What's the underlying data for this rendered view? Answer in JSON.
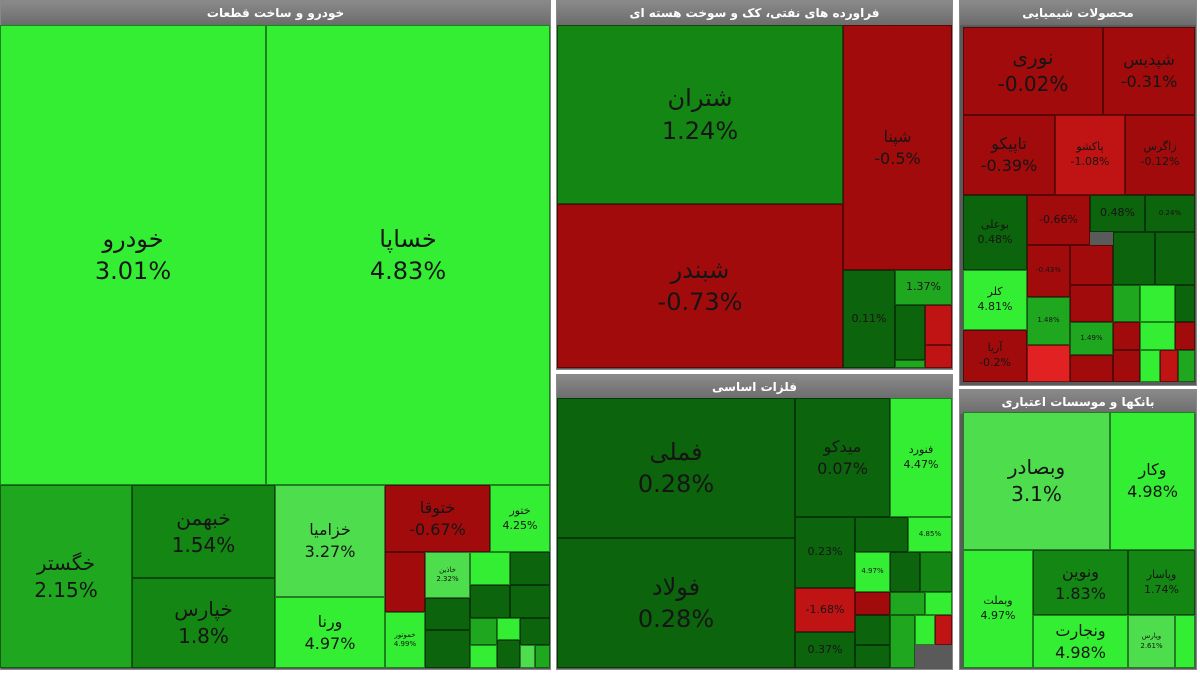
{
  "colors": {
    "g5": "#33ee33",
    "g3": "#4ddd4d",
    "g2": "#1fa81f",
    "g1": "#138613",
    "g0": "#0c640c",
    "r0": "#a20b0b",
    "r1": "#c01414",
    "r2": "#e22222"
  },
  "panels": [
    {
      "title": "خودرو و ساخت قطعات",
      "tiles": [
        {
          "name": "خودرو",
          "change": "3.01%",
          "tone": "g5"
        },
        {
          "name": "خساپا",
          "change": "4.83%",
          "tone": "g5"
        },
        {
          "name": "خگستر",
          "change": "2.15%",
          "tone": "g2"
        },
        {
          "name": "خبهمن",
          "change": "1.54%",
          "tone": "g1"
        },
        {
          "name": "خپارس",
          "change": "1.8%",
          "tone": "g1"
        },
        {
          "name": "خزامیا",
          "change": "3.27%",
          "tone": "g3"
        },
        {
          "name": "ورنا",
          "change": "4.97%",
          "tone": "g5"
        },
        {
          "name": "ختوقا",
          "change": "-0.67%",
          "tone": "r0"
        },
        {
          "name": "ختور",
          "change": "4.25%",
          "tone": "g5"
        },
        {
          "name": "",
          "change": "",
          "tone": "r0"
        },
        {
          "name": "خموتور",
          "change": "4.99%",
          "tone": "g5"
        },
        {
          "name": "خاذین",
          "change": "2.32%",
          "tone": "g3"
        },
        {
          "name": "",
          "change": "",
          "tone": "g5"
        },
        {
          "name": "",
          "change": "",
          "tone": "g0"
        },
        {
          "name": "",
          "change": "",
          "tone": "g0"
        },
        {
          "name": "",
          "change": "",
          "tone": "g0"
        },
        {
          "name": "",
          "change": "",
          "tone": "g0"
        },
        {
          "name": "",
          "change": "",
          "tone": "g0"
        },
        {
          "name": "",
          "change": "",
          "tone": "g2"
        },
        {
          "name": "",
          "change": "",
          "tone": "g5"
        },
        {
          "name": "",
          "change": "",
          "tone": "g0"
        },
        {
          "name": "",
          "change": "",
          "tone": "g5"
        },
        {
          "name": "",
          "change": "",
          "tone": "g0"
        },
        {
          "name": "",
          "change": "",
          "tone": "g3"
        },
        {
          "name": "",
          "change": "",
          "tone": "g2"
        }
      ]
    },
    {
      "title": "فراورده های نفتی، کک و سوخت هسته ای",
      "tiles": [
        {
          "name": "شتران",
          "change": "1.24%",
          "tone": "g1"
        },
        {
          "name": "شپنا",
          "change": "-0.5%",
          "tone": "r0"
        },
        {
          "name": "شبندر",
          "change": "-0.73%",
          "tone": "r0"
        },
        {
          "name": "",
          "change": "0.11%",
          "tone": "g0"
        },
        {
          "name": "",
          "change": "1.37%",
          "tone": "g2"
        },
        {
          "name": "",
          "change": "",
          "tone": "g0"
        },
        {
          "name": "",
          "change": "",
          "tone": "r1"
        },
        {
          "name": "",
          "change": "",
          "tone": "g2"
        },
        {
          "name": "",
          "change": "",
          "tone": "r1"
        }
      ]
    },
    {
      "title": "فلزات اساسی",
      "tiles": [
        {
          "name": "فملی",
          "change": "0.28%",
          "tone": "g0"
        },
        {
          "name": "فولاد",
          "change": "0.28%",
          "tone": "g0"
        },
        {
          "name": "میدکو",
          "change": "0.07%",
          "tone": "g0"
        },
        {
          "name": "فنورد",
          "change": "4.47%",
          "tone": "g5"
        },
        {
          "name": "",
          "change": "0.23%",
          "tone": "g0"
        },
        {
          "name": "",
          "change": "",
          "tone": "g0"
        },
        {
          "name": "",
          "change": "4.85%",
          "tone": "g5"
        },
        {
          "name": "",
          "change": "4.97%",
          "tone": "g5"
        },
        {
          "name": "",
          "change": "",
          "tone": "g0"
        },
        {
          "name": "",
          "change": "",
          "tone": "g1"
        },
        {
          "name": "",
          "change": "-1.68%",
          "tone": "r1"
        },
        {
          "name": "",
          "change": "",
          "tone": "r0"
        },
        {
          "name": "",
          "change": "",
          "tone": "g2"
        },
        {
          "name": "",
          "change": "",
          "tone": "g5"
        },
        {
          "name": "",
          "change": "0.37%",
          "tone": "g0"
        },
        {
          "name": "",
          "change": "",
          "tone": "g0"
        },
        {
          "name": "",
          "change": "",
          "tone": "g0"
        },
        {
          "name": "",
          "change": "",
          "tone": "g2"
        },
        {
          "name": "",
          "change": "",
          "tone": "g5"
        },
        {
          "name": "",
          "change": "",
          "tone": "r1"
        }
      ]
    },
    {
      "title": "محصولات شیمیایی",
      "tiles": [
        {
          "name": "نوری",
          "change": "-0.02%",
          "tone": "r0"
        },
        {
          "name": "شپدیس",
          "change": "-0.31%",
          "tone": "r0"
        },
        {
          "name": "تاپیکو",
          "change": "-0.39%",
          "tone": "r0"
        },
        {
          "name": "پاکشو",
          "change": "-1.08%",
          "tone": "r1"
        },
        {
          "name": "زاگرس",
          "change": "-0.12%",
          "tone": "r0"
        },
        {
          "name": "بوعلی",
          "change": "0.48%",
          "tone": "g0"
        },
        {
          "name": "کلر",
          "change": "4.81%",
          "tone": "g5"
        },
        {
          "name": "آریا",
          "change": "-0.2%",
          "tone": "r0"
        },
        {
          "name": "",
          "change": "-0.66%",
          "tone": "r0"
        },
        {
          "name": "",
          "change": "0.48%",
          "tone": "g0"
        },
        {
          "name": "",
          "change": "0.24%",
          "tone": "g0"
        },
        {
          "name": "",
          "change": "-0.43%",
          "tone": "r0"
        },
        {
          "name": "",
          "change": "",
          "tone": "r0"
        },
        {
          "name": "",
          "change": "",
          "tone": "g0"
        },
        {
          "name": "",
          "change": "",
          "tone": "g0"
        },
        {
          "name": "",
          "change": "1.48%",
          "tone": "g2"
        },
        {
          "name": "",
          "change": "",
          "tone": "r0"
        },
        {
          "name": "",
          "change": "",
          "tone": "g2"
        },
        {
          "name": "",
          "change": "",
          "tone": "g5"
        },
        {
          "name": "",
          "change": "",
          "tone": "g0"
        },
        {
          "name": "",
          "change": "1.49%",
          "tone": "g2"
        },
        {
          "name": "",
          "change": "",
          "tone": "r0"
        },
        {
          "name": "",
          "change": "",
          "tone": "g5"
        },
        {
          "name": "",
          "change": "",
          "tone": "r0"
        },
        {
          "name": "",
          "change": "",
          "tone": "r2"
        },
        {
          "name": "",
          "change": "",
          "tone": "r0"
        },
        {
          "name": "",
          "change": "",
          "tone": "r0"
        },
        {
          "name": "",
          "change": "",
          "tone": "g5"
        },
        {
          "name": "",
          "change": "",
          "tone": "r1"
        },
        {
          "name": "",
          "change": "",
          "tone": "g2"
        }
      ]
    },
    {
      "title": "بانکها و موسسات اعتباری",
      "tiles": [
        {
          "name": "وبصادر",
          "change": "3.1%",
          "tone": "g3"
        },
        {
          "name": "وکار",
          "change": "4.98%",
          "tone": "g5"
        },
        {
          "name": "وبملت",
          "change": "4.97%",
          "tone": "g5"
        },
        {
          "name": "ونوین",
          "change": "1.83%",
          "tone": "g1"
        },
        {
          "name": "وپاسار",
          "change": "1.74%",
          "tone": "g1"
        },
        {
          "name": "ونجارت",
          "change": "4.98%",
          "tone": "g5"
        },
        {
          "name": "وپارس",
          "change": "2.61%",
          "tone": "g3"
        },
        {
          "name": "",
          "change": "",
          "tone": "g5"
        }
      ]
    }
  ]
}
